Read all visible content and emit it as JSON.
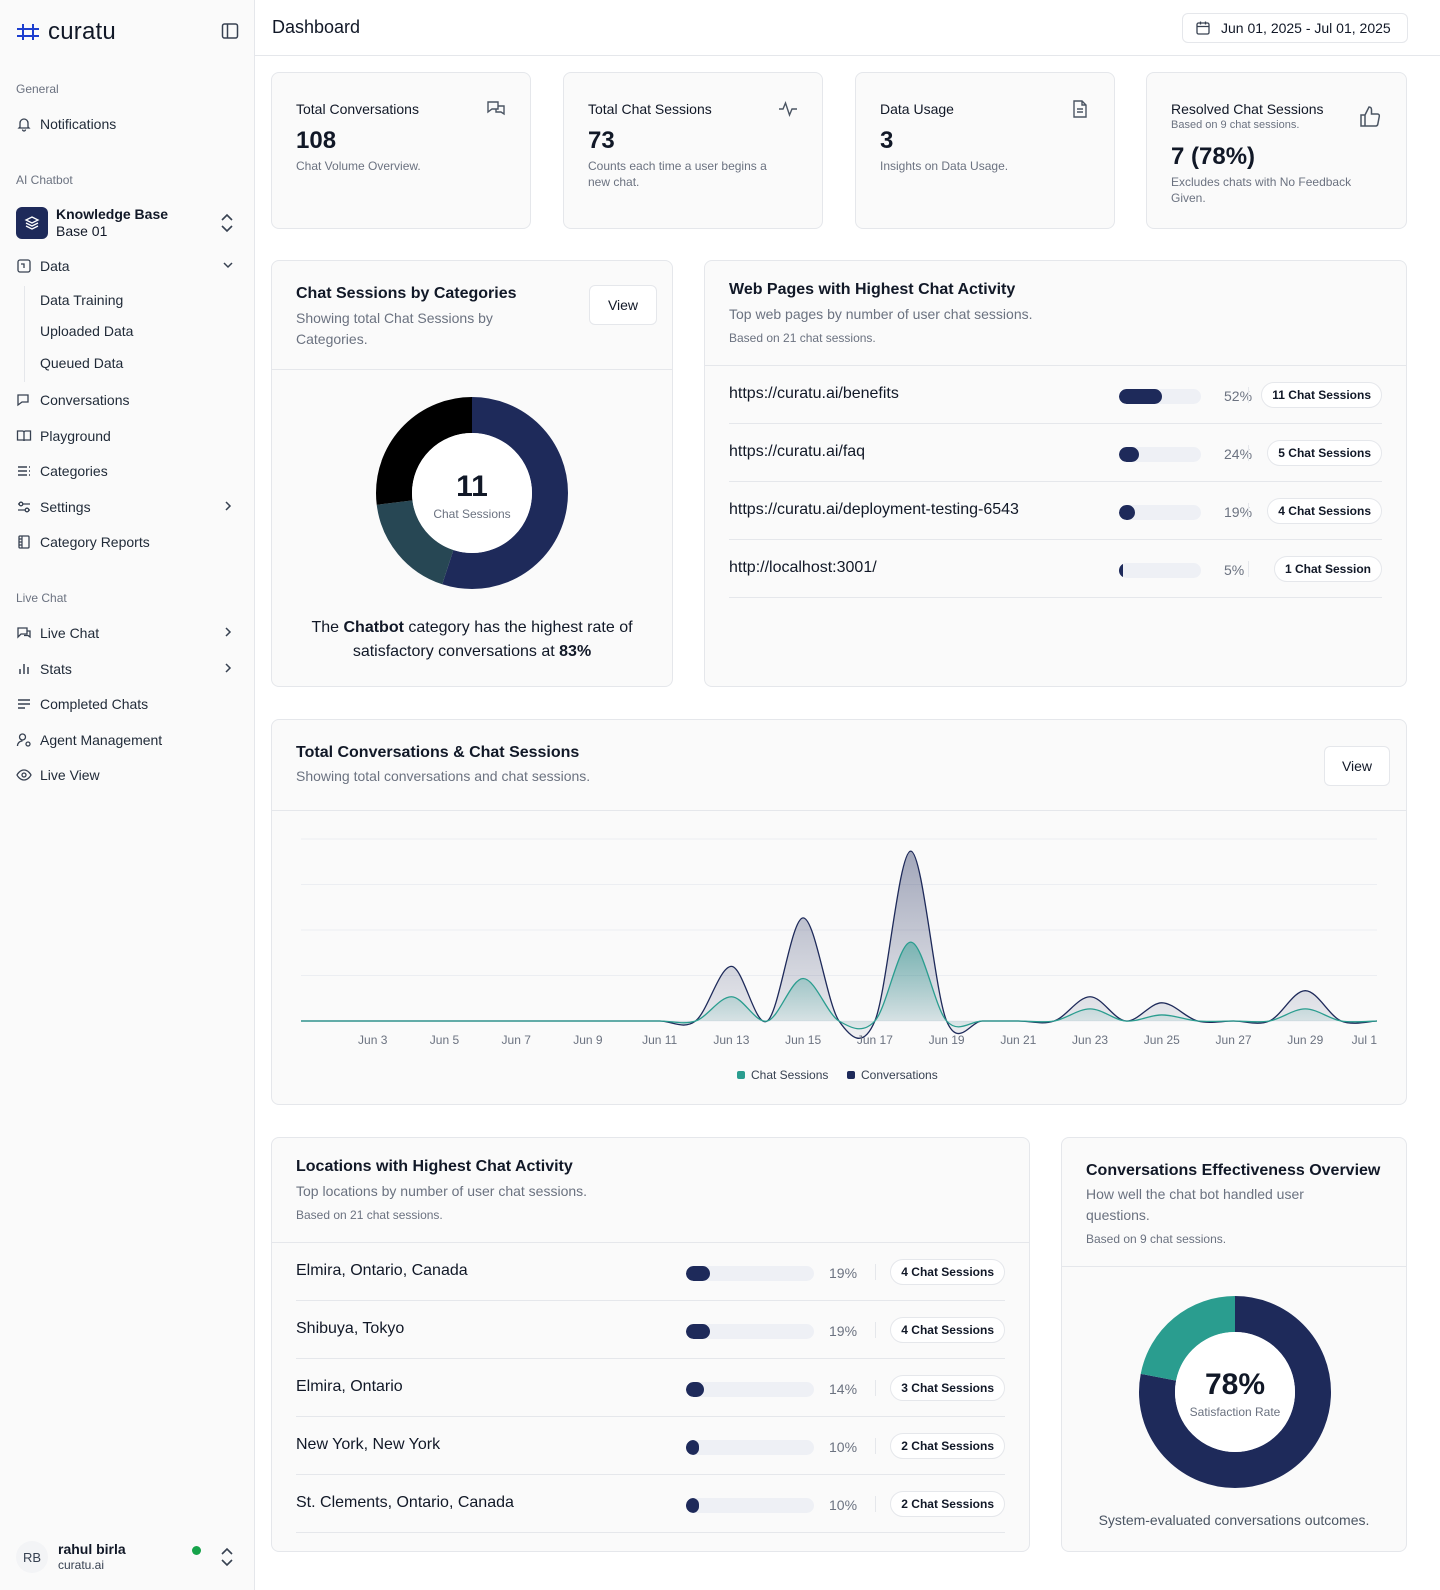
{
  "brand": {
    "name": "curatu"
  },
  "sidebar": {
    "general_title": "General",
    "notifications": "Notifications",
    "ai_chatbot_title": "AI Chatbot",
    "kb_title": "Knowledge Base",
    "kb_sub": "Base 01",
    "data": "Data",
    "data_sub": [
      "Data Training",
      "Uploaded Data",
      "Queued Data"
    ],
    "conversations": "Conversations",
    "playground": "Playground",
    "categories": "Categories",
    "settings": "Settings",
    "category_reports": "Category Reports",
    "live_chat_title": "Live Chat",
    "live_chat": "Live Chat",
    "stats": "Stats",
    "completed_chats": "Completed Chats",
    "agent_management": "Agent Management",
    "live_view": "Live View"
  },
  "user": {
    "initials": "RB",
    "name": "rahul birla",
    "org": "curatu.ai",
    "status_color": "#16a34a"
  },
  "header": {
    "title": "Dashboard",
    "date_range": "Jun 01, 2025 - Jul 01, 2025"
  },
  "stats": [
    {
      "title": "Total Conversations",
      "value": "108",
      "desc": "Chat Volume Overview.",
      "icon": "chat-bubbles-icon"
    },
    {
      "title": "Total Chat Sessions",
      "value": "73",
      "desc": "Counts each time a user begins a new chat.",
      "icon": "activity-icon"
    },
    {
      "title": "Data Usage",
      "value": "3",
      "desc": "Insights on Data Usage.",
      "icon": "document-icon"
    },
    {
      "title": "Resolved Chat Sessions",
      "subtitle": "Based on 9 chat sessions.",
      "value": "7 (78%)",
      "desc": "Excludes chats with No Feedback Given.",
      "icon": "thumbs-up-icon"
    }
  ],
  "categories_card": {
    "title": "Chat Sessions by Categories",
    "subtitle": "Showing total Chat Sessions by Categories.",
    "view": "View",
    "center_value": "11",
    "center_label": "Chat Sessions",
    "summary_pre": "The",
    "summary_bold": "Chatbot",
    "summary_mid": "category has the highest rate of satisfactory conversations at",
    "summary_pct": "83%",
    "segments": [
      {
        "fraction": 0.55,
        "color": "#1e2a5a"
      },
      {
        "fraction": 0.18,
        "color": "#274754"
      },
      {
        "fraction": 0.27,
        "color": "#000000"
      }
    ]
  },
  "webpages_card": {
    "title": "Web Pages with Highest Chat Activity",
    "subtitle": "Top web pages by number of user chat sessions.",
    "note": "Based on 21 chat sessions.",
    "rows": [
      {
        "label": "https://curatu.ai/benefits",
        "fraction": 0.52,
        "pct": "52%",
        "pill": "11 Chat Sessions"
      },
      {
        "label": "https://curatu.ai/faq",
        "fraction": 0.24,
        "pct": "24%",
        "pill": "5 Chat Sessions"
      },
      {
        "label": "https://curatu.ai/deployment-testing-6543",
        "fraction": 0.19,
        "pct": "19%",
        "pill": "4 Chat Sessions"
      },
      {
        "label": "http://localhost:3001/",
        "fraction": 0.05,
        "pct": "5%",
        "pill": "1 Chat Session"
      }
    ]
  },
  "trend_card": {
    "title": "Total Conversations & Chat Sessions",
    "subtitle": "Showing total conversations and chat sessions.",
    "view": "View"
  },
  "chart_data": {
    "type": "area",
    "x_tick_labels": [
      "Jun 3",
      "Jun 5",
      "Jun 7",
      "Jun 9",
      "Jun 11",
      "Jun 13",
      "Jun 15",
      "Jun 17",
      "Jun 19",
      "Jun 21",
      "Jun 23",
      "Jun 25",
      "Jun 27",
      "Jun 29",
      "Jul 1"
    ],
    "x": [
      "Jun 1",
      "Jun 2",
      "Jun 3",
      "Jun 4",
      "Jun 5",
      "Jun 6",
      "Jun 7",
      "Jun 8",
      "Jun 9",
      "Jun 10",
      "Jun 11",
      "Jun 12",
      "Jun 13",
      "Jun 14",
      "Jun 15",
      "Jun 16",
      "Jun 17",
      "Jun 18",
      "Jun 19",
      "Jun 20",
      "Jun 21",
      "Jun 22",
      "Jun 23",
      "Jun 24",
      "Jun 25",
      "Jun 26",
      "Jun 27",
      "Jun 28",
      "Jun 29",
      "Jun 30",
      "Jul 1"
    ],
    "ylim": [
      0,
      30
    ],
    "series": [
      {
        "name": "Chat Sessions",
        "color": "#2a9d8f",
        "values": [
          0,
          0,
          0,
          0,
          0,
          0,
          0,
          0,
          0,
          0,
          0,
          0,
          4,
          0,
          7,
          0,
          0,
          13,
          0,
          0,
          0,
          0,
          2,
          0,
          1,
          0,
          0,
          0,
          2,
          0,
          0
        ]
      },
      {
        "name": "Conversations",
        "color": "#1e2a5a",
        "values": [
          0,
          0,
          0,
          0,
          0,
          0,
          0,
          0,
          0,
          0,
          0,
          0,
          9,
          0,
          17,
          0,
          0,
          28,
          0,
          0,
          0,
          0,
          4,
          0,
          3,
          0,
          0,
          0,
          5,
          0,
          0
        ]
      }
    ],
    "grid": true,
    "legend": "bottom"
  },
  "locations_card": {
    "title": "Locations with Highest Chat Activity",
    "subtitle": "Top locations by number of user chat sessions.",
    "note": "Based on 21 chat sessions.",
    "rows": [
      {
        "label": "Elmira, Ontario, Canada",
        "fraction": 0.19,
        "pct": "19%",
        "pill": "4 Chat Sessions"
      },
      {
        "label": "Shibuya, Tokyo",
        "fraction": 0.19,
        "pct": "19%",
        "pill": "4 Chat Sessions"
      },
      {
        "label": "Elmira, Ontario",
        "fraction": 0.14,
        "pct": "14%",
        "pill": "3 Chat Sessions"
      },
      {
        "label": "New York, New York",
        "fraction": 0.1,
        "pct": "10%",
        "pill": "2 Chat Sessions"
      },
      {
        "label": "St. Clements, Ontario, Canada",
        "fraction": 0.1,
        "pct": "10%",
        "pill": "2 Chat Sessions"
      }
    ]
  },
  "effectiveness_card": {
    "title": "Conversations Effectiveness Overview",
    "subtitle": "How well the chat bot handled user questions.",
    "note": "Based on 9 chat sessions.",
    "center_value": "78%",
    "center_label": "Satisfaction Rate",
    "footer": "System-evaluated conversations outcomes.",
    "segments": [
      {
        "fraction": 0.78,
        "color": "#1e2a5a"
      },
      {
        "fraction": 0.22,
        "color": "#2a9d8f"
      }
    ]
  }
}
